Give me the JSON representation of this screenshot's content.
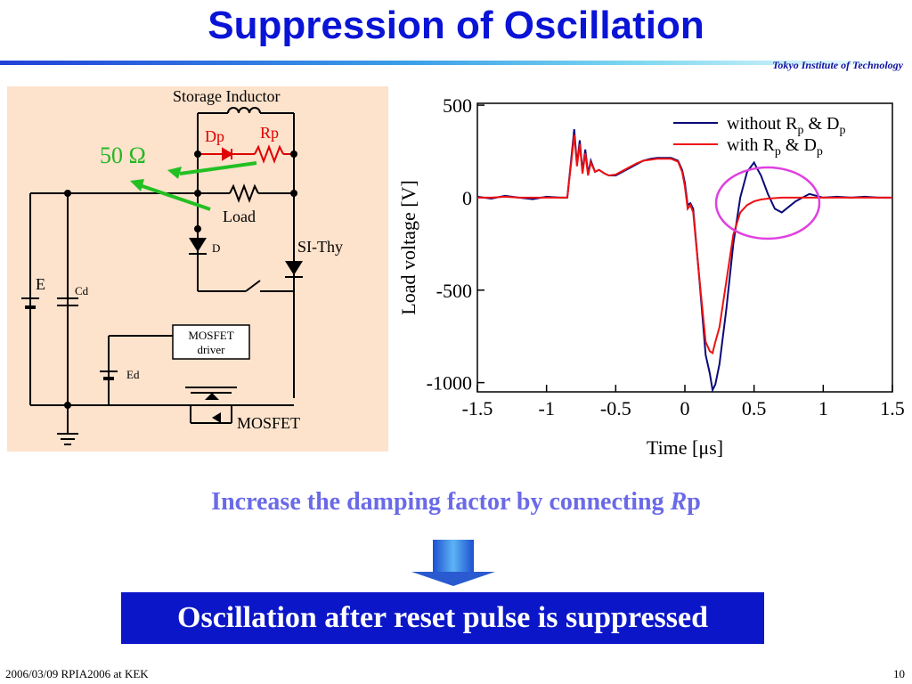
{
  "slide": {
    "title": "Suppression of Oscillation",
    "institution": "Tokyo Institute of Technology",
    "statement_prefix": "Increase the damping factor by connecting ",
    "statement_var": "R",
    "statement_suffix": "p",
    "result": "Oscillation after reset pulse is suppressed",
    "footer_left": "2006/03/09 RPIA2006 at KEK",
    "footer_right": "10"
  },
  "circuit": {
    "storage_inductor": "Storage Inductor",
    "dp": "Dp",
    "rp": "Rp",
    "ohm": "50 Ω",
    "load": "Load",
    "d": "D",
    "sithy": "SI-Thy",
    "e": "E",
    "cd": "Cd",
    "mosfet_driver_1": "MOSFET",
    "mosfet_driver_2": "driver",
    "ed": "Ed",
    "mosfet": "MOSFET"
  },
  "chart_data": {
    "type": "line",
    "xlabel_main": "Time [",
    "xlabel_mu": "μ",
    "xlabel_end": "s]",
    "ylabel": "Load voltage [V]",
    "xlim": [
      -1.5,
      1.5
    ],
    "ylim": [
      -1050,
      510
    ],
    "x_ticks": [
      "-1.5",
      "-1",
      "-0.5",
      "0",
      "0.5",
      "1",
      "1.5"
    ],
    "y_ticks": [
      "500",
      "0",
      "-500",
      "-1000"
    ],
    "series": [
      {
        "legend_main": "without R",
        "legend_sub1": "p",
        "legend_mid": " & D",
        "legend_sub2": "p",
        "color": "#0a0a78",
        "points": [
          [
            -1.5,
            5
          ],
          [
            -1.4,
            -5
          ],
          [
            -1.3,
            10
          ],
          [
            -1.2,
            0
          ],
          [
            -1.1,
            -8
          ],
          [
            -1.0,
            5
          ],
          [
            -0.9,
            0
          ],
          [
            -0.85,
            0
          ],
          [
            -0.82,
            220
          ],
          [
            -0.8,
            370
          ],
          [
            -0.78,
            180
          ],
          [
            -0.76,
            310
          ],
          [
            -0.74,
            140
          ],
          [
            -0.72,
            260
          ],
          [
            -0.7,
            130
          ],
          [
            -0.68,
            200
          ],
          [
            -0.65,
            140
          ],
          [
            -0.62,
            150
          ],
          [
            -0.58,
            130
          ],
          [
            -0.55,
            120
          ],
          [
            -0.5,
            120
          ],
          [
            -0.45,
            140
          ],
          [
            -0.4,
            160
          ],
          [
            -0.35,
            180
          ],
          [
            -0.3,
            200
          ],
          [
            -0.25,
            210
          ],
          [
            -0.2,
            215
          ],
          [
            -0.15,
            215
          ],
          [
            -0.1,
            215
          ],
          [
            -0.05,
            200
          ],
          [
            -0.02,
            150
          ],
          [
            0.0,
            80
          ],
          [
            0.02,
            -40
          ],
          [
            0.04,
            -30
          ],
          [
            0.06,
            -60
          ],
          [
            0.1,
            -400
          ],
          [
            0.15,
            -850
          ],
          [
            0.18,
            -950
          ],
          [
            0.2,
            -1040
          ],
          [
            0.22,
            -1010
          ],
          [
            0.25,
            -900
          ],
          [
            0.3,
            -600
          ],
          [
            0.35,
            -250
          ],
          [
            0.4,
            0
          ],
          [
            0.45,
            140
          ],
          [
            0.5,
            190
          ],
          [
            0.52,
            160
          ],
          [
            0.55,
            120
          ],
          [
            0.6,
            20
          ],
          [
            0.65,
            -60
          ],
          [
            0.7,
            -80
          ],
          [
            0.75,
            -50
          ],
          [
            0.8,
            -20
          ],
          [
            0.85,
            0
          ],
          [
            0.9,
            20
          ],
          [
            0.95,
            10
          ],
          [
            1.0,
            0
          ],
          [
            1.1,
            5
          ],
          [
            1.2,
            0
          ],
          [
            1.3,
            5
          ],
          [
            1.4,
            0
          ],
          [
            1.5,
            0
          ]
        ]
      },
      {
        "legend_main": "with R",
        "legend_sub1": "p",
        "legend_mid": " & D",
        "legend_sub2": "p",
        "color": "#ee1111",
        "points": [
          [
            -1.5,
            0
          ],
          [
            -1.4,
            0
          ],
          [
            -1.3,
            5
          ],
          [
            -1.2,
            0
          ],
          [
            -1.1,
            0
          ],
          [
            -1.0,
            0
          ],
          [
            -0.9,
            0
          ],
          [
            -0.85,
            0
          ],
          [
            -0.82,
            200
          ],
          [
            -0.8,
            340
          ],
          [
            -0.78,
            170
          ],
          [
            -0.76,
            290
          ],
          [
            -0.74,
            130
          ],
          [
            -0.72,
            240
          ],
          [
            -0.7,
            120
          ],
          [
            -0.68,
            190
          ],
          [
            -0.65,
            140
          ],
          [
            -0.62,
            150
          ],
          [
            -0.58,
            130
          ],
          [
            -0.55,
            120
          ],
          [
            -0.5,
            125
          ],
          [
            -0.45,
            145
          ],
          [
            -0.4,
            165
          ],
          [
            -0.35,
            185
          ],
          [
            -0.3,
            200
          ],
          [
            -0.25,
            205
          ],
          [
            -0.2,
            210
          ],
          [
            -0.15,
            210
          ],
          [
            -0.1,
            210
          ],
          [
            -0.05,
            195
          ],
          [
            -0.02,
            140
          ],
          [
            0.0,
            60
          ],
          [
            0.02,
            -60
          ],
          [
            0.04,
            -40
          ],
          [
            0.06,
            -80
          ],
          [
            0.1,
            -400
          ],
          [
            0.15,
            -780
          ],
          [
            0.18,
            -830
          ],
          [
            0.2,
            -840
          ],
          [
            0.22,
            -780
          ],
          [
            0.25,
            -700
          ],
          [
            0.3,
            -450
          ],
          [
            0.35,
            -200
          ],
          [
            0.4,
            -80
          ],
          [
            0.45,
            -40
          ],
          [
            0.5,
            -20
          ],
          [
            0.55,
            -10
          ],
          [
            0.6,
            -5
          ],
          [
            0.7,
            0
          ],
          [
            0.8,
            0
          ],
          [
            0.9,
            0
          ],
          [
            1.0,
            0
          ],
          [
            1.2,
            0
          ],
          [
            1.5,
            0
          ]
        ]
      }
    ]
  }
}
